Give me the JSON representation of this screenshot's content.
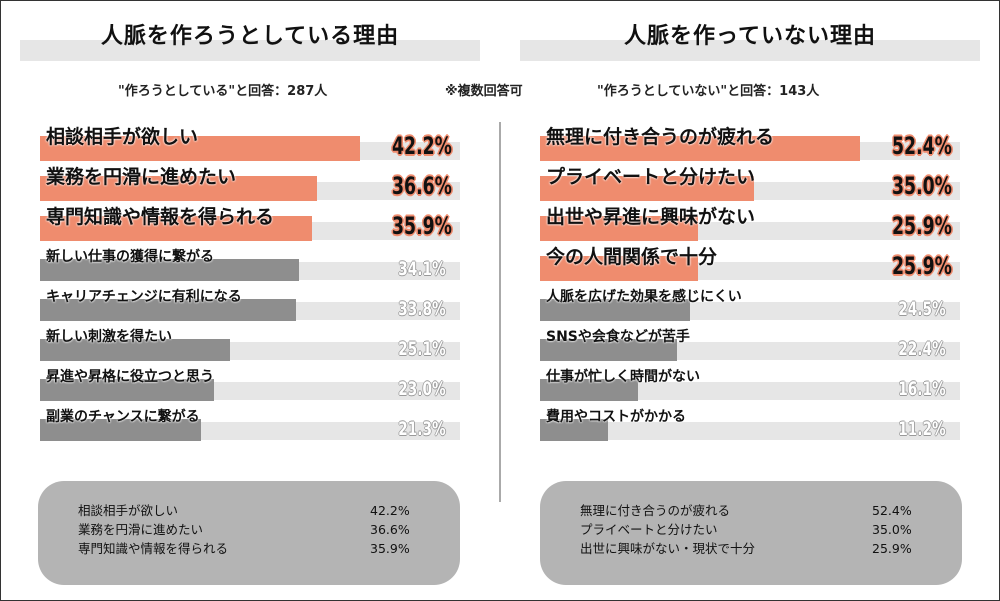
{
  "left": {
    "title": "人脈を作ろうとしている理由",
    "subtitle": "\"作ろうとしている\"と回答：287人",
    "summary": [
      {
        "label": "相談相手が欲しい",
        "value": "42.2%"
      },
      {
        "label": "業務を円滑に進めたい",
        "value": "36.6%"
      },
      {
        "label": "専門知識や情報を得られる",
        "value": "35.9%"
      }
    ]
  },
  "note": "※複数回答可",
  "right": {
    "title": "人脈を作っていない理由",
    "subtitle": "\"作ろうとしていない\"と回答：143人",
    "summary": [
      {
        "label": "無理に付き合うのが疲れる",
        "value": "52.4%"
      },
      {
        "label": "プライベートと分けたい",
        "value": "35.0%"
      },
      {
        "label": "出世に興味がない・現状で十分",
        "value": "25.9%"
      }
    ]
  },
  "chart_data": [
    {
      "type": "bar",
      "orientation": "horizontal",
      "title": "人脈を作ろうとしている理由",
      "unit": "%",
      "xlim": [
        0,
        55.4
      ],
      "highlight_color": "#ef8c6e",
      "base_color": "#8e8e8e",
      "categories": [
        "相談相手が欲しい",
        "業務を円滑に進めたい",
        "専門知識や情報を得られる",
        "新しい仕事の獲得に繋がる",
        "キャリアチェンジに有利になる",
        "新しい刺激を得たい",
        "昇進や昇格に役立つと思う",
        "副業のチャンスに繋がる"
      ],
      "values": [
        42.2,
        36.6,
        35.9,
        34.1,
        33.8,
        25.1,
        23.0,
        21.3
      ],
      "labels": [
        "42.2%",
        "36.6%",
        "35.9%",
        "34.1%",
        "33.8%",
        "25.1%",
        "23.0%",
        "21.3%"
      ],
      "highlighted": 3
    },
    {
      "type": "bar",
      "orientation": "horizontal",
      "title": "人脈を作っていない理由",
      "unit": "%",
      "xlim": [
        0,
        68.8
      ],
      "highlight_color": "#ef8c6e",
      "base_color": "#8e8e8e",
      "categories": [
        "無理に付き合うのが疲れる",
        "プライベートと分けたい",
        "出世や昇進に興味がない",
        "今の人間関係で十分",
        "人脈を広げた効果を感じにくい",
        "SNSや会食などが苦手",
        "仕事が忙しく時間がない",
        "費用やコストがかかる"
      ],
      "values": [
        52.4,
        35.0,
        25.9,
        25.9,
        24.5,
        22.4,
        16.1,
        11.2
      ],
      "labels": [
        "52.4%",
        "35.0%",
        "25.9%",
        "25.9%",
        "24.5%",
        "22.4%",
        "16.1%",
        "11.2%"
      ],
      "highlighted": 4
    }
  ]
}
